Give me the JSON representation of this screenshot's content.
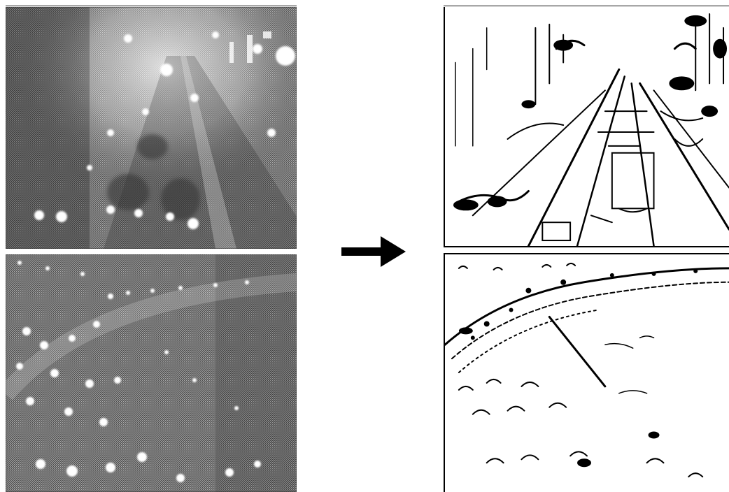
{
  "figure": {
    "panels": [
      {
        "id": "input-top",
        "kind": "grayscale-photo",
        "subject": "traffic-scene"
      },
      {
        "id": "input-bottom",
        "kind": "grayscale-photo",
        "subject": "traffic-scene"
      },
      {
        "id": "output-top",
        "kind": "edge-map",
        "subject": "traffic-scene"
      },
      {
        "id": "output-bottom",
        "kind": "edge-map",
        "subject": "traffic-scene"
      }
    ],
    "arrow_icon": "right-arrow-icon",
    "colors": {
      "ink": "#000000",
      "paper": "#ffffff",
      "photo_mid": "#8a8a8a"
    }
  }
}
